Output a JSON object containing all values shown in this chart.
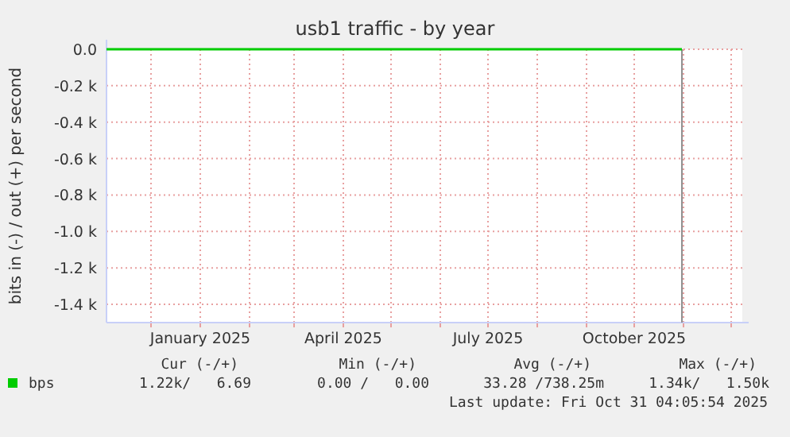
{
  "chart_data": {
    "type": "line",
    "title": "usb1 traffic - by year",
    "ylabel": "bits in (-) / out (+) per second",
    "x": [
      "2024-11-03",
      "2025-10-31"
    ],
    "series": [
      {
        "name": "bps",
        "color": "#00cc00",
        "values": [
          0,
          0
        ]
      }
    ],
    "xlim": [
      "2024-11-03",
      "2025-12-08"
    ],
    "xticks": [
      {
        "value": "2024-12-01",
        "label": null
      },
      {
        "value": "2025-01-01",
        "label": "January 2025"
      },
      {
        "value": "2025-02-01",
        "label": null
      },
      {
        "value": "2025-03-01",
        "label": null
      },
      {
        "value": "2025-04-01",
        "label": "April 2025"
      },
      {
        "value": "2025-05-01",
        "label": null
      },
      {
        "value": "2025-06-01",
        "label": null
      },
      {
        "value": "2025-07-01",
        "label": "July 2025"
      },
      {
        "value": "2025-08-01",
        "label": null
      },
      {
        "value": "2025-09-01",
        "label": null
      },
      {
        "value": "2025-10-01",
        "label": "October 2025"
      },
      {
        "value": "2025-11-01",
        "label": null
      },
      {
        "value": "2025-12-01",
        "label": null
      }
    ],
    "ylim": [
      -1500,
      0
    ],
    "yticks": [
      {
        "value": 0,
        "label": "0.0"
      },
      {
        "value": -200,
        "label": "-0.2 k"
      },
      {
        "value": -400,
        "label": "-0.4 k"
      },
      {
        "value": -600,
        "label": "-0.6 k"
      },
      {
        "value": -800,
        "label": "-0.8 k"
      },
      {
        "value": -1000,
        "label": "-1.0 k"
      },
      {
        "value": -1200,
        "label": "-1.2 k"
      },
      {
        "value": -1400,
        "label": "-1.4 k"
      }
    ],
    "ref_lines": [
      {
        "axis": "x",
        "value": "2025-10-31",
        "color": "#909090"
      }
    ],
    "grid": true,
    "legend": "bottom left",
    "annotations": [
      "Cur (-/+)",
      "Min (-/+)",
      "Avg (-/+)",
      "Max (-/+)",
      "1.22k/   6.69",
      "0.00 /   0.00",
      "33.28 /738.25m",
      "1.34k/   1.50k",
      "Last update: Fri Oct 31 04:05:54 2025"
    ]
  }
}
